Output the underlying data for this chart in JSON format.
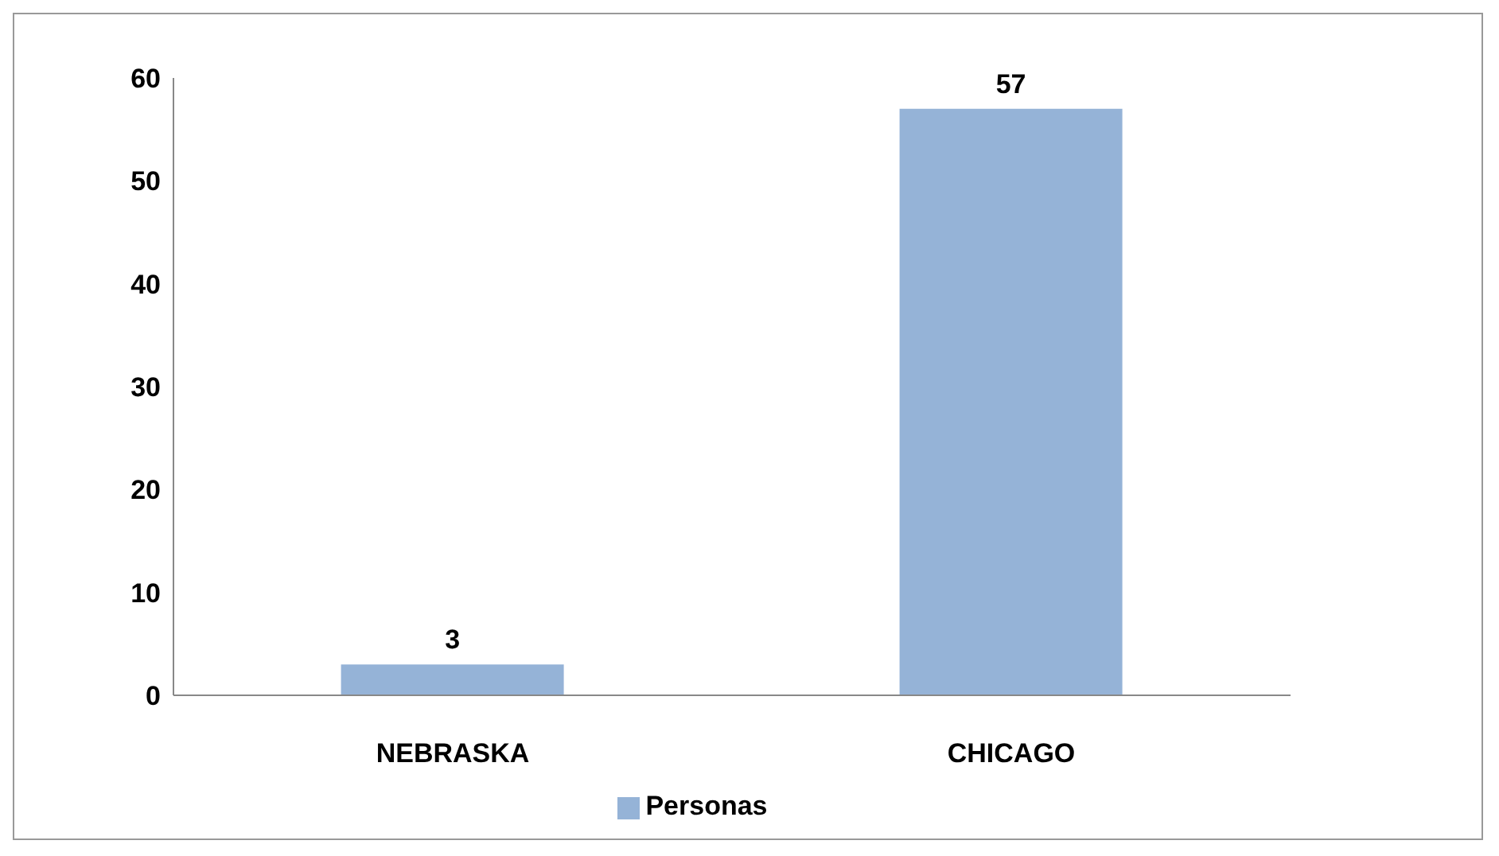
{
  "chart_data": {
    "type": "bar",
    "categories": [
      "NEBRASKA",
      "CHICAGO"
    ],
    "series": [
      {
        "name": "Personas",
        "color": "#95b3d7",
        "values": [
          3,
          57
        ]
      }
    ],
    "ylim": [
      0,
      60
    ],
    "yticks": [
      0,
      10,
      20,
      30,
      40,
      50,
      60
    ],
    "grid": false,
    "legend": "bottom",
    "data_labels": true
  }
}
